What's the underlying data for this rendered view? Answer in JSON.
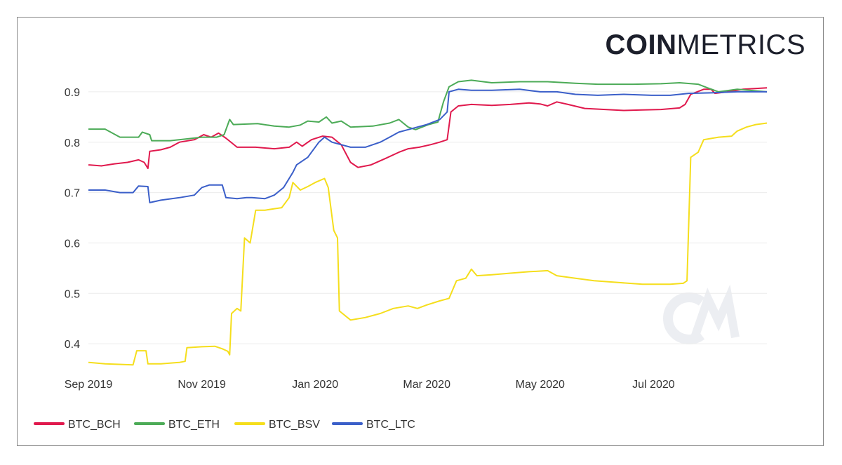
{
  "logo": {
    "bold": "COIN",
    "light": "METRICS"
  },
  "chart_data": {
    "type": "line",
    "title": "",
    "xlabel": "",
    "ylabel": "",
    "xlim": [
      "2019-09-01",
      "2020-08-31"
    ],
    "ylim": [
      0.35,
      0.95
    ],
    "y_ticks": [
      0.4,
      0.5,
      0.6,
      0.7,
      0.8,
      0.9
    ],
    "x_ticks": [
      {
        "date": "2019-09-01",
        "label": "Sep 2019"
      },
      {
        "date": "2019-11-01",
        "label": "Nov 2019"
      },
      {
        "date": "2020-01-01",
        "label": "Jan 2020"
      },
      {
        "date": "2020-03-01",
        "label": "Mar 2020"
      },
      {
        "date": "2020-05-01",
        "label": "May 2020"
      },
      {
        "date": "2020-07-01",
        "label": "Jul 2020"
      }
    ],
    "grid": "horizontal",
    "legend_position": "bottom-left",
    "watermark": "CM",
    "series": [
      {
        "name": "BTC_BCH",
        "color": "#e0194d",
        "points": [
          [
            "2019-09-01",
            0.755
          ],
          [
            "2019-09-08",
            0.753
          ],
          [
            "2019-09-15",
            0.757
          ],
          [
            "2019-09-22",
            0.76
          ],
          [
            "2019-09-28",
            0.765
          ],
          [
            "2019-10-01",
            0.76
          ],
          [
            "2019-10-03",
            0.748
          ],
          [
            "2019-10-04",
            0.782
          ],
          [
            "2019-10-10",
            0.785
          ],
          [
            "2019-10-15",
            0.79
          ],
          [
            "2019-10-20",
            0.8
          ],
          [
            "2019-10-28",
            0.805
          ],
          [
            "2019-11-02",
            0.815
          ],
          [
            "2019-11-06",
            0.81
          ],
          [
            "2019-11-10",
            0.818
          ],
          [
            "2019-11-14",
            0.808
          ],
          [
            "2019-11-20",
            0.79
          ],
          [
            "2019-11-30",
            0.79
          ],
          [
            "2019-12-10",
            0.787
          ],
          [
            "2019-12-18",
            0.79
          ],
          [
            "2019-12-22",
            0.8
          ],
          [
            "2019-12-25",
            0.792
          ],
          [
            "2019-12-30",
            0.805
          ],
          [
            "2020-01-05",
            0.812
          ],
          [
            "2020-01-10",
            0.81
          ],
          [
            "2020-01-15",
            0.795
          ],
          [
            "2020-01-20",
            0.76
          ],
          [
            "2020-01-24",
            0.75
          ],
          [
            "2020-01-31",
            0.755
          ],
          [
            "2020-02-08",
            0.768
          ],
          [
            "2020-02-15",
            0.78
          ],
          [
            "2020-02-20",
            0.787
          ],
          [
            "2020-02-26",
            0.79
          ],
          [
            "2020-03-03",
            0.795
          ],
          [
            "2020-03-08",
            0.8
          ],
          [
            "2020-03-12",
            0.805
          ],
          [
            "2020-03-14",
            0.86
          ],
          [
            "2020-03-18",
            0.872
          ],
          [
            "2020-03-25",
            0.875
          ],
          [
            "2020-04-05",
            0.873
          ],
          [
            "2020-04-15",
            0.875
          ],
          [
            "2020-04-25",
            0.878
          ],
          [
            "2020-05-01",
            0.876
          ],
          [
            "2020-05-05",
            0.872
          ],
          [
            "2020-05-10",
            0.88
          ],
          [
            "2020-05-16",
            0.875
          ],
          [
            "2020-05-25",
            0.867
          ],
          [
            "2020-06-05",
            0.865
          ],
          [
            "2020-06-15",
            0.863
          ],
          [
            "2020-06-25",
            0.864
          ],
          [
            "2020-07-05",
            0.865
          ],
          [
            "2020-07-15",
            0.868
          ],
          [
            "2020-07-18",
            0.875
          ],
          [
            "2020-07-21",
            0.895
          ],
          [
            "2020-07-28",
            0.905
          ],
          [
            "2020-08-01",
            0.905
          ],
          [
            "2020-08-03",
            0.897
          ],
          [
            "2020-08-10",
            0.9
          ],
          [
            "2020-08-18",
            0.905
          ],
          [
            "2020-08-31",
            0.908
          ]
        ]
      },
      {
        "name": "BTC_ETH",
        "color": "#4cab57",
        "points": [
          [
            "2019-09-01",
            0.826
          ],
          [
            "2019-09-10",
            0.826
          ],
          [
            "2019-09-18",
            0.81
          ],
          [
            "2019-09-28",
            0.81
          ],
          [
            "2019-09-30",
            0.82
          ],
          [
            "2019-10-04",
            0.815
          ],
          [
            "2019-10-05",
            0.803
          ],
          [
            "2019-10-15",
            0.803
          ],
          [
            "2019-10-25",
            0.807
          ],
          [
            "2019-11-01",
            0.81
          ],
          [
            "2019-11-09",
            0.81
          ],
          [
            "2019-11-13",
            0.815
          ],
          [
            "2019-11-16",
            0.845
          ],
          [
            "2019-11-18",
            0.835
          ],
          [
            "2019-12-01",
            0.837
          ],
          [
            "2019-12-10",
            0.832
          ],
          [
            "2019-12-18",
            0.83
          ],
          [
            "2019-12-24",
            0.834
          ],
          [
            "2019-12-28",
            0.842
          ],
          [
            "2020-01-03",
            0.84
          ],
          [
            "2020-01-07",
            0.85
          ],
          [
            "2020-01-10",
            0.838
          ],
          [
            "2020-01-15",
            0.842
          ],
          [
            "2020-01-20",
            0.83
          ],
          [
            "2020-02-01",
            0.832
          ],
          [
            "2020-02-10",
            0.838
          ],
          [
            "2020-02-15",
            0.845
          ],
          [
            "2020-02-20",
            0.83
          ],
          [
            "2020-02-24",
            0.825
          ],
          [
            "2020-03-02",
            0.835
          ],
          [
            "2020-03-07",
            0.84
          ],
          [
            "2020-03-10",
            0.88
          ],
          [
            "2020-03-13",
            0.91
          ],
          [
            "2020-03-18",
            0.92
          ],
          [
            "2020-03-25",
            0.923
          ],
          [
            "2020-04-05",
            0.918
          ],
          [
            "2020-04-20",
            0.92
          ],
          [
            "2020-05-05",
            0.92
          ],
          [
            "2020-05-20",
            0.917
          ],
          [
            "2020-06-01",
            0.915
          ],
          [
            "2020-06-20",
            0.915
          ],
          [
            "2020-07-05",
            0.916
          ],
          [
            "2020-07-15",
            0.918
          ],
          [
            "2020-07-25",
            0.915
          ],
          [
            "2020-07-30",
            0.908
          ],
          [
            "2020-08-05",
            0.9
          ],
          [
            "2020-08-15",
            0.905
          ],
          [
            "2020-08-31",
            0.9
          ]
        ]
      },
      {
        "name": "BTC_BSV",
        "color": "#f5de1c",
        "points": [
          [
            "2019-09-01",
            0.363
          ],
          [
            "2019-09-10",
            0.36
          ],
          [
            "2019-09-25",
            0.358
          ],
          [
            "2019-09-27",
            0.386
          ],
          [
            "2019-10-02",
            0.386
          ],
          [
            "2019-10-03",
            0.36
          ],
          [
            "2019-10-10",
            0.36
          ],
          [
            "2019-10-20",
            0.363
          ],
          [
            "2019-10-23",
            0.365
          ],
          [
            "2019-10-24",
            0.392
          ],
          [
            "2019-11-01",
            0.394
          ],
          [
            "2019-11-08",
            0.395
          ],
          [
            "2019-11-12",
            0.39
          ],
          [
            "2019-11-15",
            0.385
          ],
          [
            "2019-11-16",
            0.378
          ],
          [
            "2019-11-17",
            0.46
          ],
          [
            "2019-11-20",
            0.47
          ],
          [
            "2019-11-22",
            0.465
          ],
          [
            "2019-11-24",
            0.61
          ],
          [
            "2019-11-27",
            0.6
          ],
          [
            "2019-11-30",
            0.665
          ],
          [
            "2019-12-05",
            0.665
          ],
          [
            "2019-12-10",
            0.668
          ],
          [
            "2019-12-14",
            0.67
          ],
          [
            "2019-12-18",
            0.69
          ],
          [
            "2019-12-20",
            0.72
          ],
          [
            "2019-12-24",
            0.705
          ],
          [
            "2019-12-28",
            0.712
          ],
          [
            "2020-01-01",
            0.72
          ],
          [
            "2020-01-06",
            0.728
          ],
          [
            "2020-01-08",
            0.71
          ],
          [
            "2020-01-11",
            0.625
          ],
          [
            "2020-01-13",
            0.61
          ],
          [
            "2020-01-14",
            0.465
          ],
          [
            "2020-01-20",
            0.447
          ],
          [
            "2020-01-28",
            0.452
          ],
          [
            "2020-02-05",
            0.46
          ],
          [
            "2020-02-12",
            0.47
          ],
          [
            "2020-02-20",
            0.475
          ],
          [
            "2020-02-25",
            0.47
          ],
          [
            "2020-03-01",
            0.477
          ],
          [
            "2020-03-08",
            0.485
          ],
          [
            "2020-03-13",
            0.49
          ],
          [
            "2020-03-17",
            0.525
          ],
          [
            "2020-03-22",
            0.53
          ],
          [
            "2020-03-25",
            0.548
          ],
          [
            "2020-03-28",
            0.535
          ],
          [
            "2020-04-05",
            0.537
          ],
          [
            "2020-04-15",
            0.54
          ],
          [
            "2020-04-25",
            0.543
          ],
          [
            "2020-05-05",
            0.545
          ],
          [
            "2020-05-10",
            0.535
          ],
          [
            "2020-05-20",
            0.53
          ],
          [
            "2020-05-30",
            0.525
          ],
          [
            "2020-06-10",
            0.522
          ],
          [
            "2020-06-25",
            0.518
          ],
          [
            "2020-07-10",
            0.518
          ],
          [
            "2020-07-17",
            0.52
          ],
          [
            "2020-07-19",
            0.525
          ],
          [
            "2020-07-21",
            0.77
          ],
          [
            "2020-07-25",
            0.78
          ],
          [
            "2020-07-28",
            0.805
          ],
          [
            "2020-08-05",
            0.81
          ],
          [
            "2020-08-12",
            0.812
          ],
          [
            "2020-08-15",
            0.822
          ],
          [
            "2020-08-20",
            0.83
          ],
          [
            "2020-08-25",
            0.835
          ],
          [
            "2020-08-31",
            0.838
          ]
        ]
      },
      {
        "name": "BTC_LTC",
        "color": "#3b5fc9",
        "points": [
          [
            "2019-09-01",
            0.705
          ],
          [
            "2019-09-10",
            0.705
          ],
          [
            "2019-09-18",
            0.7
          ],
          [
            "2019-09-25",
            0.7
          ],
          [
            "2019-09-28",
            0.713
          ],
          [
            "2019-10-03",
            0.712
          ],
          [
            "2019-10-04",
            0.68
          ],
          [
            "2019-10-10",
            0.685
          ],
          [
            "2019-10-20",
            0.69
          ],
          [
            "2019-10-28",
            0.695
          ],
          [
            "2019-11-01",
            0.71
          ],
          [
            "2019-11-05",
            0.715
          ],
          [
            "2019-11-12",
            0.715
          ],
          [
            "2019-11-14",
            0.69
          ],
          [
            "2019-11-20",
            0.688
          ],
          [
            "2019-11-25",
            0.69
          ],
          [
            "2019-11-28",
            0.69
          ],
          [
            "2019-12-05",
            0.688
          ],
          [
            "2019-12-10",
            0.695
          ],
          [
            "2019-12-15",
            0.71
          ],
          [
            "2019-12-20",
            0.74
          ],
          [
            "2019-12-22",
            0.755
          ],
          [
            "2019-12-28",
            0.77
          ],
          [
            "2020-01-03",
            0.8
          ],
          [
            "2020-01-06",
            0.81
          ],
          [
            "2020-01-10",
            0.8
          ],
          [
            "2020-01-15",
            0.795
          ],
          [
            "2020-01-20",
            0.79
          ],
          [
            "2020-01-28",
            0.79
          ],
          [
            "2020-02-05",
            0.8
          ],
          [
            "2020-02-10",
            0.81
          ],
          [
            "2020-02-15",
            0.82
          ],
          [
            "2020-02-20",
            0.825
          ],
          [
            "2020-02-25",
            0.83
          ],
          [
            "2020-03-01",
            0.835
          ],
          [
            "2020-03-08",
            0.845
          ],
          [
            "2020-03-12",
            0.86
          ],
          [
            "2020-03-13",
            0.9
          ],
          [
            "2020-03-18",
            0.905
          ],
          [
            "2020-03-25",
            0.903
          ],
          [
            "2020-04-05",
            0.903
          ],
          [
            "2020-04-20",
            0.905
          ],
          [
            "2020-05-01",
            0.9
          ],
          [
            "2020-05-10",
            0.9
          ],
          [
            "2020-05-20",
            0.895
          ],
          [
            "2020-06-01",
            0.893
          ],
          [
            "2020-06-15",
            0.895
          ],
          [
            "2020-06-30",
            0.893
          ],
          [
            "2020-07-10",
            0.893
          ],
          [
            "2020-07-20",
            0.897
          ],
          [
            "2020-08-01",
            0.898
          ],
          [
            "2020-08-15",
            0.9
          ],
          [
            "2020-08-31",
            0.9
          ]
        ]
      }
    ]
  }
}
